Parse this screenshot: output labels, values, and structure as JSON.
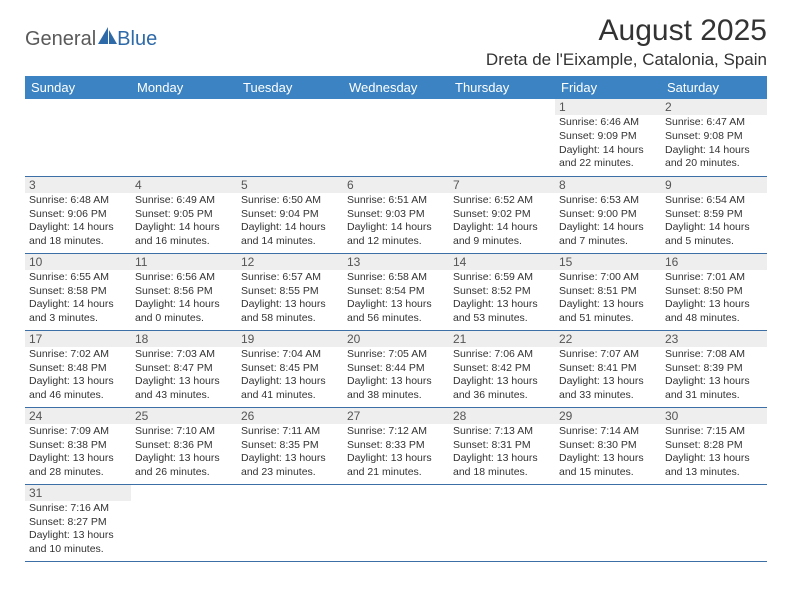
{
  "logo": {
    "part1": "General",
    "part2": "Blue"
  },
  "title": "August 2025",
  "location": "Dreta de l'Eixample, Catalonia, Spain",
  "dayHeaders": [
    "Sunday",
    "Monday",
    "Tuesday",
    "Wednesday",
    "Thursday",
    "Friday",
    "Saturday"
  ],
  "colors": {
    "headerBg": "#3b83c2",
    "headerText": "#ffffff",
    "dayNumBg": "#eeeeee",
    "borderColor": "#3b6fa5",
    "logoBlue": "#2f6aa8",
    "logoGray": "#5a5a5a"
  },
  "weeks": [
    [
      null,
      null,
      null,
      null,
      null,
      {
        "n": "1",
        "sr": "Sunrise: 6:46 AM",
        "ss": "Sunset: 9:09 PM",
        "d1": "Daylight: 14 hours",
        "d2": "and 22 minutes."
      },
      {
        "n": "2",
        "sr": "Sunrise: 6:47 AM",
        "ss": "Sunset: 9:08 PM",
        "d1": "Daylight: 14 hours",
        "d2": "and 20 minutes."
      }
    ],
    [
      {
        "n": "3",
        "sr": "Sunrise: 6:48 AM",
        "ss": "Sunset: 9:06 PM",
        "d1": "Daylight: 14 hours",
        "d2": "and 18 minutes."
      },
      {
        "n": "4",
        "sr": "Sunrise: 6:49 AM",
        "ss": "Sunset: 9:05 PM",
        "d1": "Daylight: 14 hours",
        "d2": "and 16 minutes."
      },
      {
        "n": "5",
        "sr": "Sunrise: 6:50 AM",
        "ss": "Sunset: 9:04 PM",
        "d1": "Daylight: 14 hours",
        "d2": "and 14 minutes."
      },
      {
        "n": "6",
        "sr": "Sunrise: 6:51 AM",
        "ss": "Sunset: 9:03 PM",
        "d1": "Daylight: 14 hours",
        "d2": "and 12 minutes."
      },
      {
        "n": "7",
        "sr": "Sunrise: 6:52 AM",
        "ss": "Sunset: 9:02 PM",
        "d1": "Daylight: 14 hours",
        "d2": "and 9 minutes."
      },
      {
        "n": "8",
        "sr": "Sunrise: 6:53 AM",
        "ss": "Sunset: 9:00 PM",
        "d1": "Daylight: 14 hours",
        "d2": "and 7 minutes."
      },
      {
        "n": "9",
        "sr": "Sunrise: 6:54 AM",
        "ss": "Sunset: 8:59 PM",
        "d1": "Daylight: 14 hours",
        "d2": "and 5 minutes."
      }
    ],
    [
      {
        "n": "10",
        "sr": "Sunrise: 6:55 AM",
        "ss": "Sunset: 8:58 PM",
        "d1": "Daylight: 14 hours",
        "d2": "and 3 minutes."
      },
      {
        "n": "11",
        "sr": "Sunrise: 6:56 AM",
        "ss": "Sunset: 8:56 PM",
        "d1": "Daylight: 14 hours",
        "d2": "and 0 minutes."
      },
      {
        "n": "12",
        "sr": "Sunrise: 6:57 AM",
        "ss": "Sunset: 8:55 PM",
        "d1": "Daylight: 13 hours",
        "d2": "and 58 minutes."
      },
      {
        "n": "13",
        "sr": "Sunrise: 6:58 AM",
        "ss": "Sunset: 8:54 PM",
        "d1": "Daylight: 13 hours",
        "d2": "and 56 minutes."
      },
      {
        "n": "14",
        "sr": "Sunrise: 6:59 AM",
        "ss": "Sunset: 8:52 PM",
        "d1": "Daylight: 13 hours",
        "d2": "and 53 minutes."
      },
      {
        "n": "15",
        "sr": "Sunrise: 7:00 AM",
        "ss": "Sunset: 8:51 PM",
        "d1": "Daylight: 13 hours",
        "d2": "and 51 minutes."
      },
      {
        "n": "16",
        "sr": "Sunrise: 7:01 AM",
        "ss": "Sunset: 8:50 PM",
        "d1": "Daylight: 13 hours",
        "d2": "and 48 minutes."
      }
    ],
    [
      {
        "n": "17",
        "sr": "Sunrise: 7:02 AM",
        "ss": "Sunset: 8:48 PM",
        "d1": "Daylight: 13 hours",
        "d2": "and 46 minutes."
      },
      {
        "n": "18",
        "sr": "Sunrise: 7:03 AM",
        "ss": "Sunset: 8:47 PM",
        "d1": "Daylight: 13 hours",
        "d2": "and 43 minutes."
      },
      {
        "n": "19",
        "sr": "Sunrise: 7:04 AM",
        "ss": "Sunset: 8:45 PM",
        "d1": "Daylight: 13 hours",
        "d2": "and 41 minutes."
      },
      {
        "n": "20",
        "sr": "Sunrise: 7:05 AM",
        "ss": "Sunset: 8:44 PM",
        "d1": "Daylight: 13 hours",
        "d2": "and 38 minutes."
      },
      {
        "n": "21",
        "sr": "Sunrise: 7:06 AM",
        "ss": "Sunset: 8:42 PM",
        "d1": "Daylight: 13 hours",
        "d2": "and 36 minutes."
      },
      {
        "n": "22",
        "sr": "Sunrise: 7:07 AM",
        "ss": "Sunset: 8:41 PM",
        "d1": "Daylight: 13 hours",
        "d2": "and 33 minutes."
      },
      {
        "n": "23",
        "sr": "Sunrise: 7:08 AM",
        "ss": "Sunset: 8:39 PM",
        "d1": "Daylight: 13 hours",
        "d2": "and 31 minutes."
      }
    ],
    [
      {
        "n": "24",
        "sr": "Sunrise: 7:09 AM",
        "ss": "Sunset: 8:38 PM",
        "d1": "Daylight: 13 hours",
        "d2": "and 28 minutes."
      },
      {
        "n": "25",
        "sr": "Sunrise: 7:10 AM",
        "ss": "Sunset: 8:36 PM",
        "d1": "Daylight: 13 hours",
        "d2": "and 26 minutes."
      },
      {
        "n": "26",
        "sr": "Sunrise: 7:11 AM",
        "ss": "Sunset: 8:35 PM",
        "d1": "Daylight: 13 hours",
        "d2": "and 23 minutes."
      },
      {
        "n": "27",
        "sr": "Sunrise: 7:12 AM",
        "ss": "Sunset: 8:33 PM",
        "d1": "Daylight: 13 hours",
        "d2": "and 21 minutes."
      },
      {
        "n": "28",
        "sr": "Sunrise: 7:13 AM",
        "ss": "Sunset: 8:31 PM",
        "d1": "Daylight: 13 hours",
        "d2": "and 18 minutes."
      },
      {
        "n": "29",
        "sr": "Sunrise: 7:14 AM",
        "ss": "Sunset: 8:30 PM",
        "d1": "Daylight: 13 hours",
        "d2": "and 15 minutes."
      },
      {
        "n": "30",
        "sr": "Sunrise: 7:15 AM",
        "ss": "Sunset: 8:28 PM",
        "d1": "Daylight: 13 hours",
        "d2": "and 13 minutes."
      }
    ],
    [
      {
        "n": "31",
        "sr": "Sunrise: 7:16 AM",
        "ss": "Sunset: 8:27 PM",
        "d1": "Daylight: 13 hours",
        "d2": "and 10 minutes."
      },
      null,
      null,
      null,
      null,
      null,
      null
    ]
  ]
}
